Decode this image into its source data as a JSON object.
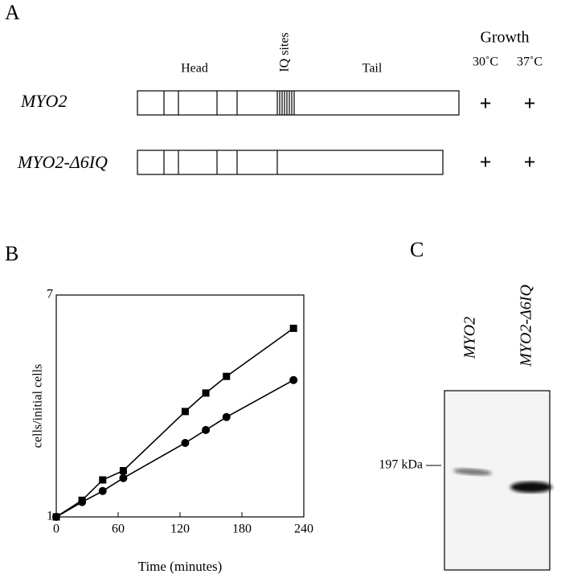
{
  "panel_labels": [
    "A",
    "B",
    "C"
  ],
  "panel_a": {
    "header": "Growth",
    "temperatures": [
      "30˚C",
      "37˚C"
    ],
    "domains": [
      "Head",
      "IQ sites",
      "Tail"
    ],
    "rows": [
      {
        "name": "MYO2",
        "growth": [
          "+",
          "+"
        ]
      },
      {
        "name": "MYO2-Δ6IQ",
        "growth": [
          "+",
          "+"
        ]
      }
    ]
  },
  "chart_data": {
    "type": "line",
    "x_label": "Time (minutes)",
    "y_label": "cells/initial cells",
    "x": [
      0,
      25,
      45,
      65,
      125,
      145,
      165,
      230
    ],
    "series": [
      {
        "marker": "square",
        "color": "#000000",
        "values": [
          1,
          1.45,
          2.0,
          2.25,
          3.85,
          4.35,
          4.8,
          6.1
        ]
      },
      {
        "marker": "circle",
        "color": "#000000",
        "values": [
          1,
          1.4,
          1.7,
          2.05,
          3.0,
          3.35,
          3.7,
          4.7
        ]
      }
    ],
    "xlim": [
      0,
      240
    ],
    "xticks": [
      0,
      60,
      120,
      180,
      240
    ],
    "ylim": [
      1,
      7
    ],
    "yticks": [
      1,
      7
    ]
  },
  "panel_c": {
    "lanes": [
      "MYO2",
      "MYO2-Δ6IQ"
    ],
    "marker": "197 kDa"
  }
}
